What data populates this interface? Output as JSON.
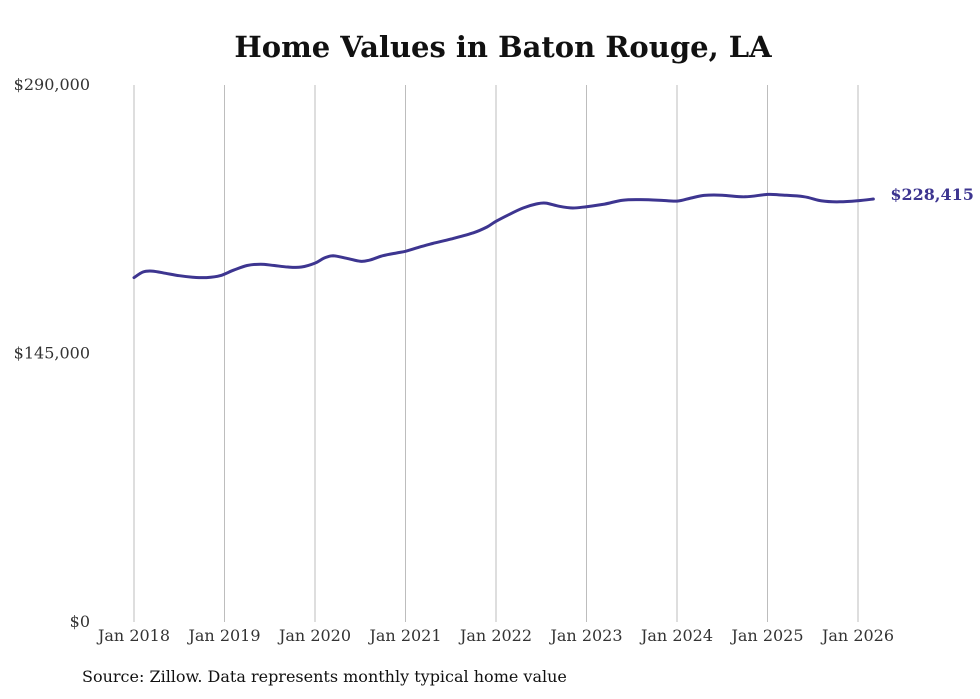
{
  "chart_data": {
    "type": "line",
    "title": "Home Values in Baton Rouge, LA",
    "xlabel": "",
    "ylabel": "",
    "ylim": [
      0,
      290000
    ],
    "y_ticks": [
      0,
      145000,
      290000
    ],
    "y_tick_labels": [
      "$0",
      "$145,000",
      "$290,000"
    ],
    "x_tick_labels": [
      "Jan 2018",
      "Jan 2019",
      "Jan 2020",
      "Jan 2021",
      "Jan 2022",
      "Jan 2023",
      "Jan 2024",
      "Jan 2025",
      "Jan 2026"
    ],
    "x_range": [
      2018.0,
      2026.25
    ],
    "series": [
      {
        "name": "Typical home value",
        "color": "#3d3590",
        "x": [
          2018.0,
          2018.1,
          2018.2,
          2018.35,
          2018.5,
          2018.65,
          2018.8,
          2018.95,
          2019.1,
          2019.25,
          2019.4,
          2019.55,
          2019.7,
          2019.85,
          2020.0,
          2020.1,
          2020.2,
          2020.35,
          2020.5,
          2020.6,
          2020.75,
          2020.9,
          2021.0,
          2021.15,
          2021.3,
          2021.5,
          2021.75,
          2021.9,
          2022.0,
          2022.15,
          2022.3,
          2022.45,
          2022.55,
          2022.7,
          2022.85,
          2023.0,
          2023.2,
          2023.4,
          2023.6,
          2023.8,
          2024.0,
          2024.15,
          2024.3,
          2024.5,
          2024.75,
          2025.0,
          2025.15,
          2025.4,
          2025.6,
          2025.8,
          2026.0,
          2026.17
        ],
        "values": [
          186000,
          189000,
          189500,
          188300,
          187000,
          186200,
          186000,
          187000,
          190000,
          192500,
          193200,
          192500,
          191700,
          191700,
          193800,
          196500,
          197800,
          196400,
          194800,
          195400,
          197800,
          199300,
          200200,
          202400,
          204400,
          206800,
          210200,
          213300,
          216400,
          220200,
          223600,
          225800,
          226200,
          224500,
          223600,
          224300,
          225700,
          227800,
          228100,
          227800,
          227300,
          228900,
          230400,
          230500,
          229600,
          230900,
          230600,
          229700,
          227400,
          226900,
          227500,
          228415
        ]
      }
    ],
    "end_label": "$228,415"
  },
  "source_text": "Source: Zillow. Data represents monthly typical home value"
}
